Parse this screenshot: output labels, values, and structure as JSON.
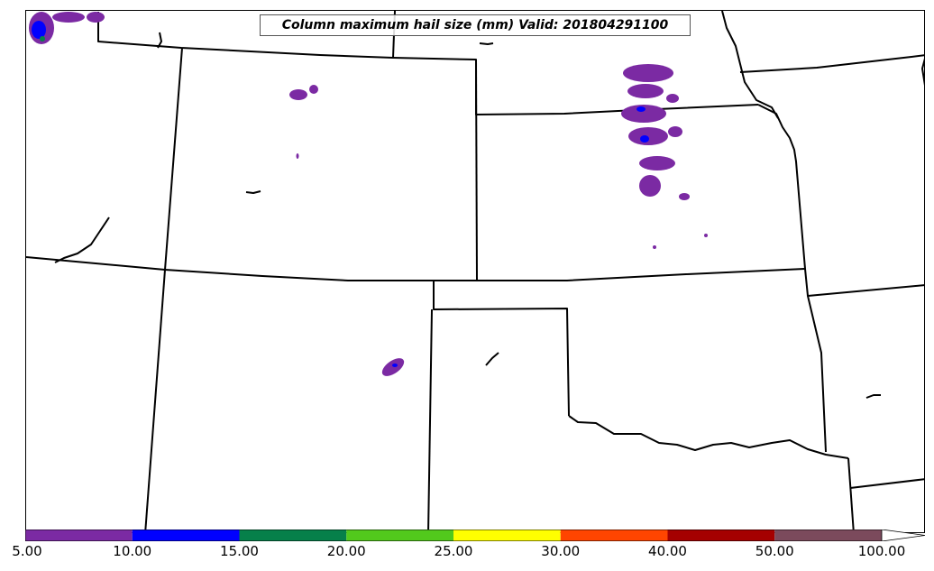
{
  "title": "Column maximum hail size (mm) Valid: 201804291100",
  "colorbar": {
    "segments": [
      {
        "from": 5,
        "to": 10,
        "color": "#7b2aa3"
      },
      {
        "from": 10,
        "to": 15,
        "color": "#0000ff"
      },
      {
        "from": 15,
        "to": 20,
        "color": "#06804a"
      },
      {
        "from": 20,
        "to": 25,
        "color": "#52c91c"
      },
      {
        "from": 25,
        "to": 30,
        "color": "#ffff00"
      },
      {
        "from": 30,
        "to": 40,
        "color": "#ff4500"
      },
      {
        "from": 40,
        "to": 50,
        "color": "#a50000"
      },
      {
        "from": 50,
        "to": 100,
        "color": "#7b4a5c"
      }
    ],
    "extend": "max",
    "tick_labels": [
      "5.00",
      "10.00",
      "15.00",
      "20.00",
      "25.00",
      "30.00",
      "40.00",
      "50.00",
      "100.00"
    ]
  },
  "colors": {
    "boundary": "#000000",
    "background": "#ffffff",
    "hail_5_10": "#7b2aa3",
    "hail_10_15": "#0000ff",
    "hail_15_20": "#06804a"
  }
}
